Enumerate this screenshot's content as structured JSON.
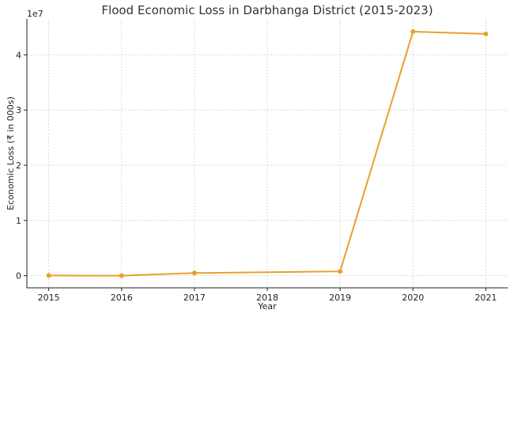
{
  "chart_data": {
    "type": "line",
    "title": "Flood Economic Loss in Darbhanga District (2015-2023)",
    "xlabel": "Year",
    "ylabel": "Economic Loss (₹ in 000s)",
    "y_exponent_label": "1e7",
    "x_ticks": [
      "2015",
      "2016",
      "2017",
      "2018",
      "2019",
      "2020",
      "2021"
    ],
    "y_ticks": [
      "0",
      "1",
      "2",
      "3",
      "4"
    ],
    "xlim": [
      2014.7,
      2021.3
    ],
    "ylim": [
      -2200000,
      46500000
    ],
    "grid": true,
    "series": [
      {
        "color": "#e8a12a",
        "x": [
          2015,
          2016,
          2017,
          2019,
          2020,
          2021
        ],
        "y": [
          30000,
          0,
          480000,
          780000,
          44200000,
          43800000
        ]
      }
    ]
  }
}
